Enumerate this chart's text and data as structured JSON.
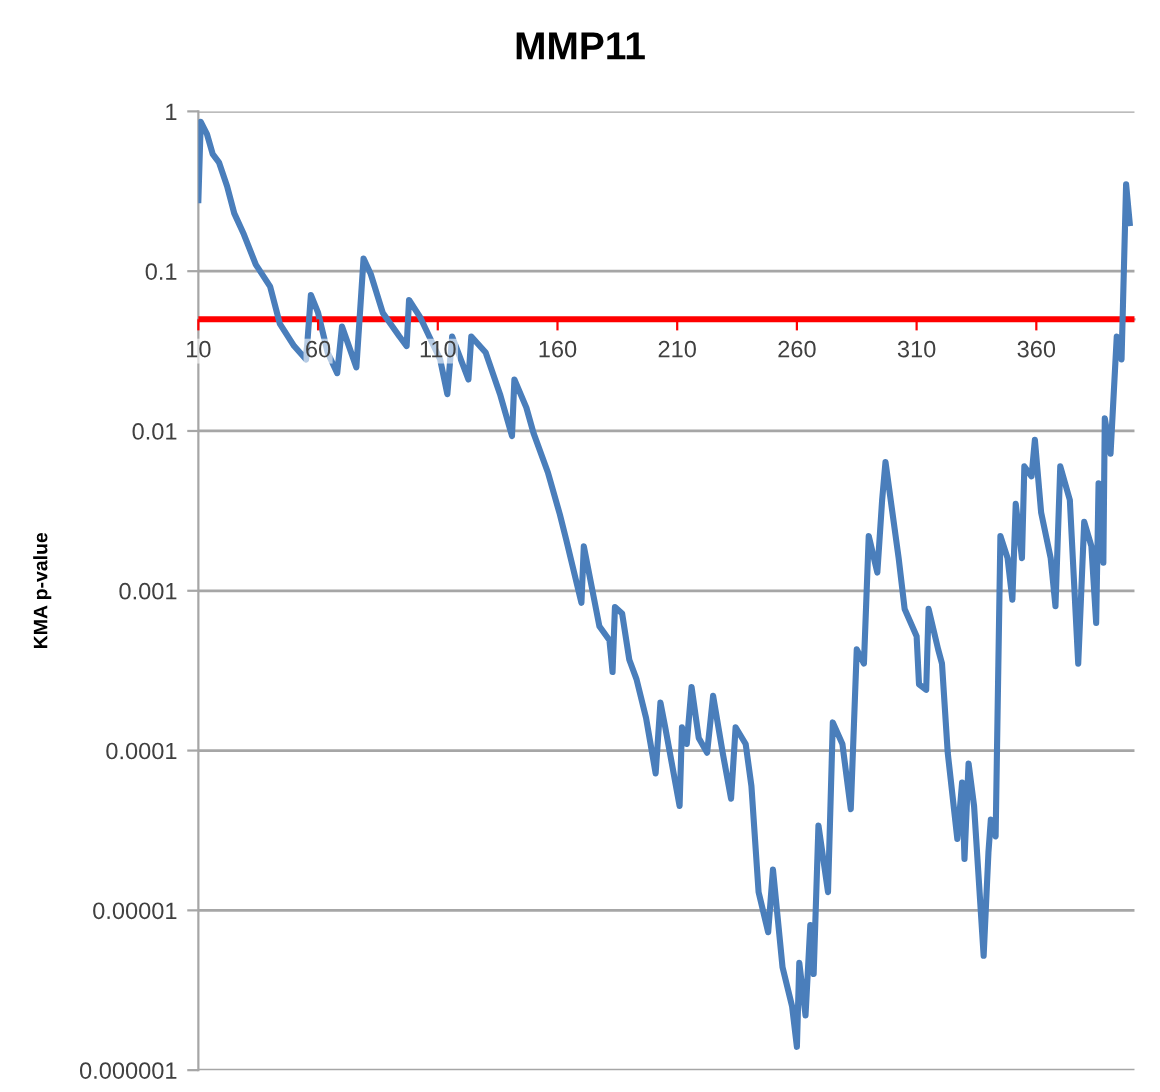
{
  "chart_data": {
    "type": "line",
    "title": "MMP11",
    "ylabel": "KMA p-value",
    "x": [
      10,
      11,
      13.6,
      16,
      18.6,
      22,
      25,
      29,
      34,
      40,
      44,
      50,
      55,
      57,
      60,
      64,
      68,
      70,
      76,
      79,
      82,
      87,
      94,
      97,
      98,
      102.5,
      111,
      114,
      116,
      122.8,
      124,
      130,
      136,
      141,
      142,
      147,
      150,
      156,
      161,
      163.6,
      170,
      171,
      177.5,
      181.7,
      183,
      184,
      187,
      190,
      193,
      197,
      201,
      203,
      205,
      211,
      212,
      214,
      216,
      219,
      222.5,
      225,
      229,
      232.5,
      234.4,
      238.6,
      241,
      244,
      248,
      250,
      254,
      258,
      260,
      261,
      263.6,
      265.6,
      267,
      269,
      273,
      275,
      279,
      282.5,
      285,
      288,
      290,
      293.6,
      295.6,
      297,
      302.5,
      305,
      310,
      311,
      314,
      315,
      319,
      320.6,
      323,
      327,
      329,
      330,
      331.7,
      334,
      338,
      340,
      341,
      343,
      345,
      348,
      350,
      351.4,
      354,
      355,
      358,
      359.4,
      362,
      366,
      368,
      370,
      374,
      377.5,
      380,
      383,
      385,
      386,
      388,
      388.6,
      391,
      393.6,
      395.6,
      397.5,
      399
    ],
    "series": [
      {
        "color": "#4a7ebb",
        "values": [
          0.278,
          0.86,
          0.72,
          0.54,
          0.48,
          0.34,
          0.23,
          0.17,
          0.11,
          0.08,
          0.047,
          0.034,
          0.028,
          0.071,
          0.055,
          0.031,
          0.023,
          0.045,
          0.025,
          0.12,
          0.096,
          0.055,
          0.039,
          0.034,
          0.066,
          0.052,
          0.028,
          0.017,
          0.039,
          0.021,
          0.039,
          0.031,
          0.017,
          0.0093,
          0.021,
          0.014,
          0.0097,
          0.0055,
          0.003,
          0.0021,
          0.00084,
          0.0019,
          0.0006,
          0.00049,
          0.00031,
          0.00079,
          0.00072,
          0.00037,
          0.00028,
          0.00016,
          7.2e-05,
          0.0002,
          0.00014,
          4.5e-05,
          0.00014,
          0.00011,
          0.00025,
          0.00012,
          9.7e-05,
          0.00022,
          9.7e-05,
          5e-05,
          0.00014,
          0.00011,
          6e-05,
          1.3e-05,
          7.3e-06,
          1.8e-05,
          4.4e-06,
          2.5e-06,
          1.4e-06,
          4.7e-06,
          2.2e-06,
          8.1e-06,
          4e-06,
          3.4e-05,
          1.3e-05,
          0.00015,
          0.00011,
          4.3e-05,
          0.00043,
          0.00035,
          0.0022,
          0.0013,
          0.0037,
          0.0064,
          0.0016,
          0.00077,
          0.00052,
          0.00026,
          0.00024,
          0.00077,
          0.00043,
          0.00035,
          9.7e-05,
          2.8e-05,
          6.3e-05,
          2.1e-05,
          8.3e-05,
          4.5e-05,
          5.2e-06,
          2.3e-05,
          3.7e-05,
          2.9e-05,
          0.0022,
          0.0016,
          0.00088,
          0.0035,
          0.0016,
          0.006,
          0.0052,
          0.0088,
          0.0031,
          0.0016,
          0.0008,
          0.006,
          0.0037,
          0.00035,
          0.0027,
          0.0019,
          0.00063,
          0.0047,
          0.0015,
          0.012,
          0.0072,
          0.039,
          0.028,
          0.35,
          0.2
        ]
      }
    ],
    "log": "y",
    "xlim": [
      10,
      401
    ],
    "xticks": [
      10,
      60,
      110,
      160,
      210,
      260,
      310,
      360
    ],
    "ylim": [
      1e-06,
      1
    ],
    "yticks": [
      {
        "value": 1,
        "label": "1"
      },
      {
        "value": 0.1,
        "label": "0.1"
      },
      {
        "value": 0.01,
        "label": "0.01"
      },
      {
        "value": 0.001,
        "label": "0.001"
      },
      {
        "value": 0.0001,
        "label": "0.0001"
      },
      {
        "value": 1e-05,
        "label": "0.00001"
      },
      {
        "value": 1e-06,
        "label": "0.000001"
      }
    ],
    "grid": "y",
    "marker": "none",
    "line_style": "solid",
    "ref_lines": [
      {
        "axis": "y",
        "value": 0.05,
        "color": "#ff0000"
      }
    ]
  }
}
